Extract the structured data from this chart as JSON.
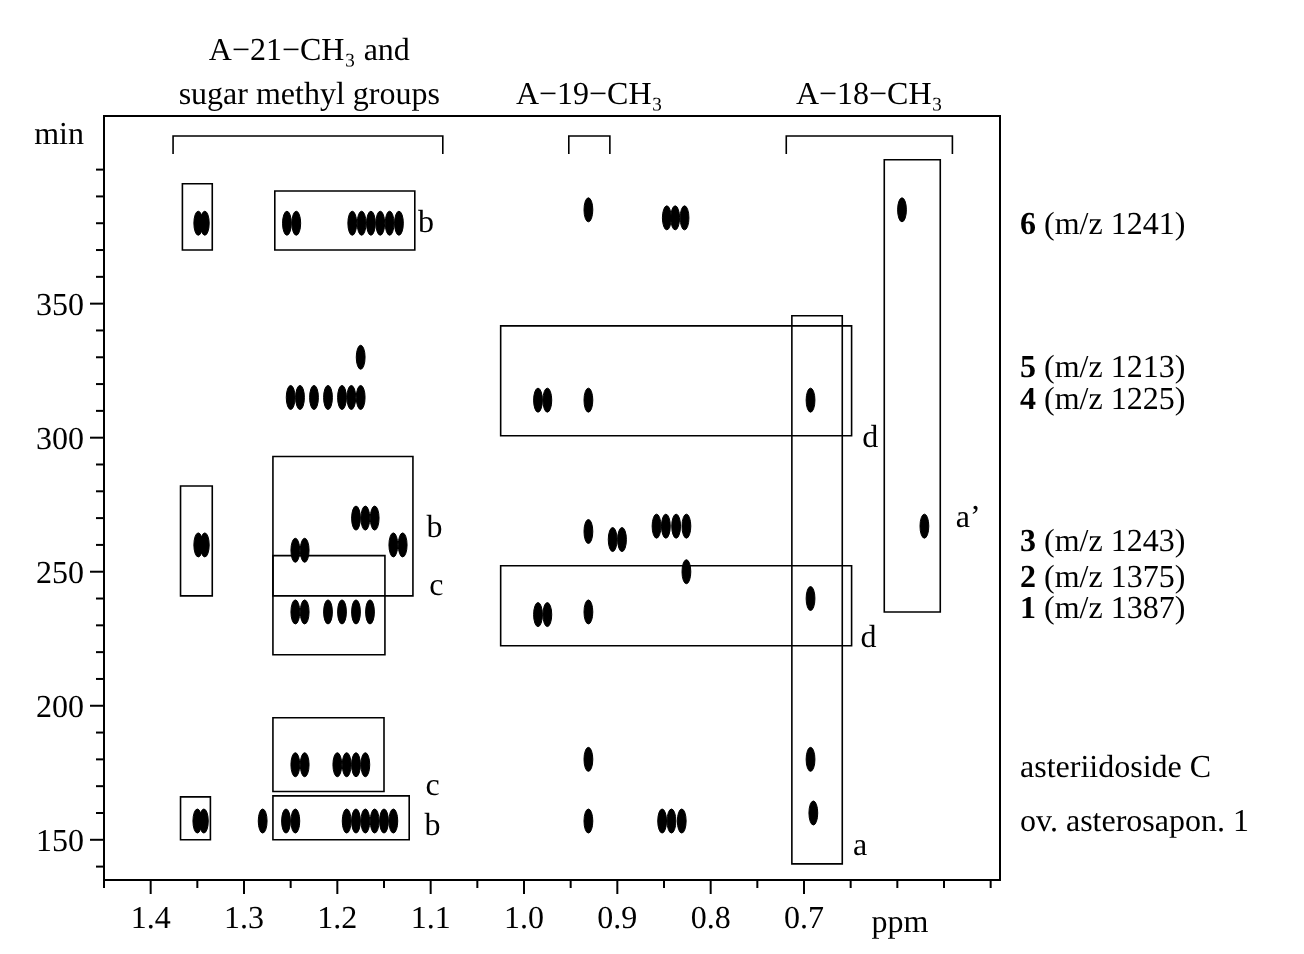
{
  "chart_data": {
    "type": "scatter",
    "xlabel": "ppm",
    "ylabel": "min",
    "xlim": [
      1.45,
      0.49
    ],
    "ylim": [
      135,
      420
    ],
    "xticks": [
      {
        "value": 1.45,
        "label": null
      },
      1.4,
      {
        "value": 1.35,
        "label": null
      },
      1.3,
      {
        "value": 1.25,
        "label": null
      },
      1.2,
      {
        "value": 1.15,
        "label": null
      },
      1.1,
      {
        "value": 1.05,
        "label": null
      },
      {
        "value": 1.0,
        "label": "1.0"
      },
      {
        "value": 0.95,
        "label": null
      },
      0.9,
      {
        "value": 0.85,
        "label": null
      },
      0.8,
      {
        "value": 0.75,
        "label": null
      },
      0.7,
      {
        "value": 0.65,
        "label": null
      },
      {
        "value": 0.6,
        "label": null
      },
      {
        "value": 0.55,
        "label": null
      },
      {
        "value": 0.5,
        "label": null
      }
    ],
    "yticks": [
      {
        "value": 140,
        "label": null
      },
      150,
      {
        "value": 160,
        "label": null
      },
      {
        "value": 170,
        "label": null
      },
      {
        "value": 180,
        "label": null
      },
      {
        "value": 190,
        "label": null
      },
      200,
      {
        "value": 210,
        "label": null
      },
      {
        "value": 220,
        "label": null
      },
      {
        "value": 230,
        "label": null
      },
      {
        "value": 240,
        "label": null
      },
      250,
      {
        "value": 260,
        "label": null
      },
      {
        "value": 270,
        "label": null
      },
      {
        "value": 280,
        "label": null
      },
      {
        "value": 290,
        "label": null
      },
      300,
      {
        "value": 310,
        "label": null
      },
      {
        "value": 320,
        "label": null
      },
      {
        "value": 330,
        "label": null
      },
      {
        "value": 340,
        "label": null
      },
      350,
      {
        "value": 360,
        "label": null
      },
      {
        "value": 370,
        "label": null
      },
      {
        "value": 380,
        "label": null
      },
      {
        "value": 390,
        "label": null
      },
      {
        "value": 400,
        "label": null
      }
    ],
    "grid": false,
    "marker": "circle",
    "series": [
      {
        "color": "#000000",
        "x": [
          1.349,
          1.342,
          1.254,
          1.244,
          1.184,
          1.174,
          1.164,
          1.154,
          1.144,
          1.134,
          0.931,
          0.847,
          0.838,
          0.828,
          0.595,
          1.25,
          1.24,
          1.225,
          1.21,
          1.195,
          1.185,
          1.175,
          1.175,
          0.985,
          0.975,
          0.931,
          0.693,
          1.349,
          1.342,
          1.245,
          1.235,
          1.18,
          1.17,
          1.16,
          1.14,
          1.13,
          1.245,
          1.235,
          1.21,
          1.195,
          1.18,
          1.165,
          0.985,
          0.975,
          0.931,
          0.931,
          0.905,
          0.895,
          0.858,
          0.848,
          0.837,
          0.826,
          0.826,
          0.693,
          0.571,
          1.245,
          1.235,
          1.2,
          1.19,
          1.18,
          1.17,
          0.931,
          0.693,
          1.35,
          1.343,
          1.28,
          1.255,
          1.245,
          1.19,
          1.18,
          1.17,
          1.16,
          1.15,
          1.14,
          0.931,
          0.852,
          0.842,
          0.831,
          0.69
        ],
        "values": [
          380,
          380,
          380,
          380,
          380,
          380,
          380,
          380,
          380,
          380,
          385,
          382,
          382,
          382,
          385,
          315,
          315,
          315,
          315,
          315,
          315,
          315,
          330,
          314,
          314,
          314,
          314,
          260,
          260,
          258,
          258,
          270,
          270,
          270,
          260,
          260,
          235,
          235,
          235,
          235,
          235,
          235,
          234,
          234,
          265,
          235,
          262,
          262,
          267,
          267,
          267,
          267,
          250,
          240,
          267,
          178,
          178,
          178,
          178,
          178,
          178,
          180,
          180,
          157,
          157,
          157,
          157,
          157,
          157,
          157,
          157,
          157,
          157,
          157,
          157,
          157,
          157,
          157,
          160
        ]
      }
    ],
    "annotations": [
      "A−21−CH₃ and sugar methyl groups",
      "A−19−CH₃",
      "A−18−CH₃",
      "6 (m/z 1241)",
      "5 (m/z 1213)",
      "4 (m/z 1225)",
      "3 (m/z 1243)",
      "2 (m/z 1375)",
      "1 (m/z 1387)",
      "asteriidoside C",
      "ov. asterosapon. 1",
      "b",
      "d",
      "a’",
      "b",
      "c",
      "d",
      "c",
      "b",
      "a"
    ]
  }
}
